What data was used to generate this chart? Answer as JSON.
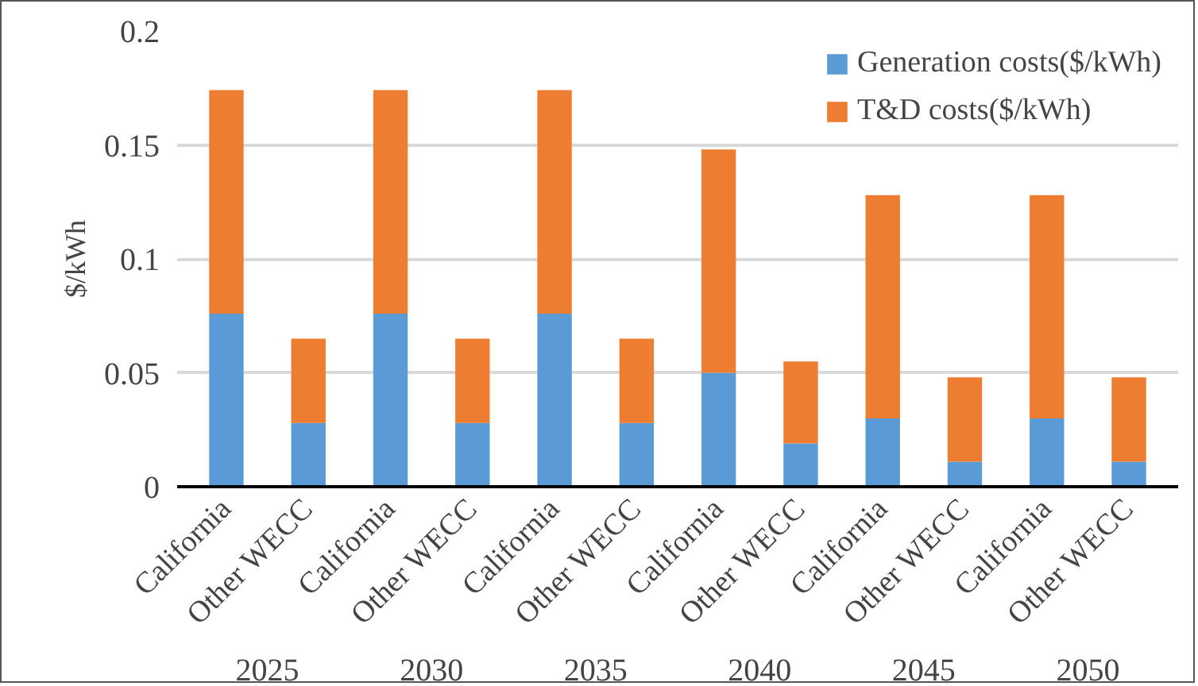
{
  "chart_data": {
    "type": "bar",
    "stacked": true,
    "ylabel": "$/kWh",
    "categories": [
      "California",
      "Other WECC",
      "California",
      "Other WECC",
      "California",
      "Other WECC",
      "California",
      "Other WECC",
      "California",
      "Other WECC",
      "California",
      "Other WECC"
    ],
    "annotations": [
      "2025",
      "2030",
      "2035",
      "2040",
      "2045",
      "2050"
    ],
    "series": [
      {
        "name": "Generation costs($/kWh)",
        "color": "#5b9bd5",
        "values": [
          0.076,
          0.028,
          0.076,
          0.028,
          0.076,
          0.028,
          0.05,
          0.019,
          0.03,
          0.011,
          0.03,
          0.011
        ]
      },
      {
        "name": "T&D costs($/kWh)",
        "color": "#ed7d31",
        "values": [
          0.098,
          0.037,
          0.098,
          0.037,
          0.098,
          0.037,
          0.098,
          0.036,
          0.098,
          0.037,
          0.098,
          0.037
        ]
      }
    ],
    "ylim": [
      0,
      0.2
    ],
    "yticks": [
      0,
      0.05,
      0.1,
      0.15,
      0.2
    ],
    "grid": "y",
    "legend": "top right"
  }
}
